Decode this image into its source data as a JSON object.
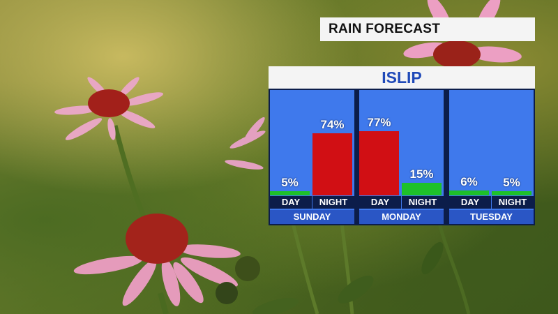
{
  "title": "RAIN FORECAST",
  "location": "ISLIP",
  "colors": {
    "night_high": "#d10f14",
    "low": "#1ec02a",
    "panel": "#3f79ec"
  },
  "chart_data": {
    "type": "bar",
    "ylim": [
      0,
      100
    ],
    "days": [
      {
        "label": "SUNDAY",
        "periods": [
          {
            "name": "DAY",
            "value": 5,
            "label": "5%"
          },
          {
            "name": "NIGHT",
            "value": 74,
            "label": "74%"
          }
        ]
      },
      {
        "label": "MONDAY",
        "periods": [
          {
            "name": "DAY",
            "value": 77,
            "label": "77%"
          },
          {
            "name": "NIGHT",
            "value": 15,
            "label": "15%"
          }
        ]
      },
      {
        "label": "TUESDAY",
        "periods": [
          {
            "name": "DAY",
            "value": 6,
            "label": "6%"
          },
          {
            "name": "NIGHT",
            "value": 5,
            "label": "5%"
          }
        ]
      }
    ]
  }
}
